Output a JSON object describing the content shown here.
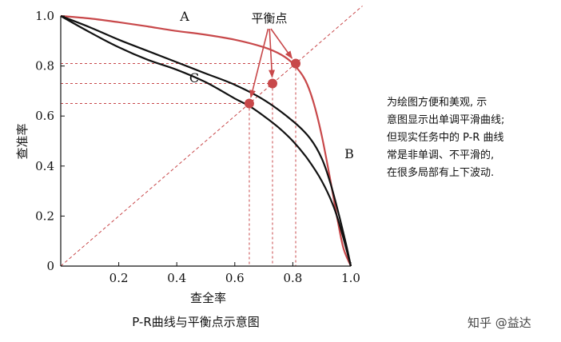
{
  "chart_data": {
    "type": "line",
    "xlabel": "查全率",
    "ylabel": "查准率",
    "xlim": [
      0,
      1
    ],
    "ylim": [
      0,
      1
    ],
    "x_ticks": [
      "0.2",
      "0.4",
      "0.6",
      "0.8",
      "1.0"
    ],
    "y_ticks": [
      "0",
      "0.2",
      "0.4",
      "0.6",
      "0.8",
      "1.0"
    ],
    "grid": false,
    "series": [
      {
        "name": "A",
        "color": "#c8484a",
        "points": [
          [
            0,
            1.0
          ],
          [
            0.1,
            0.99
          ],
          [
            0.2,
            0.975
          ],
          [
            0.3,
            0.958
          ],
          [
            0.4,
            0.94
          ],
          [
            0.5,
            0.925
          ],
          [
            0.6,
            0.905
          ],
          [
            0.7,
            0.875
          ],
          [
            0.76,
            0.845
          ],
          [
            0.8,
            0.81
          ],
          [
            0.84,
            0.75
          ],
          [
            0.87,
            0.66
          ],
          [
            0.9,
            0.52
          ],
          [
            0.93,
            0.34
          ],
          [
            0.955,
            0.18
          ],
          [
            0.975,
            0.07
          ],
          [
            1.0,
            0.0
          ]
        ]
      },
      {
        "name": "B",
        "color": "#111111",
        "points": [
          [
            0,
            1.0
          ],
          [
            0.1,
            0.955
          ],
          [
            0.2,
            0.905
          ],
          [
            0.3,
            0.86
          ],
          [
            0.4,
            0.815
          ],
          [
            0.5,
            0.77
          ],
          [
            0.6,
            0.725
          ],
          [
            0.7,
            0.665
          ],
          [
            0.8,
            0.58
          ],
          [
            0.86,
            0.51
          ],
          [
            0.9,
            0.43
          ],
          [
            0.93,
            0.33
          ],
          [
            0.96,
            0.2
          ],
          [
            0.985,
            0.08
          ],
          [
            1.0,
            0.0
          ]
        ]
      },
      {
        "name": "C",
        "color": "#111111",
        "points": [
          [
            0,
            1.0
          ],
          [
            0.1,
            0.935
          ],
          [
            0.2,
            0.875
          ],
          [
            0.3,
            0.825
          ],
          [
            0.4,
            0.785
          ],
          [
            0.5,
            0.735
          ],
          [
            0.6,
            0.67
          ],
          [
            0.65,
            0.64
          ],
          [
            0.7,
            0.6
          ],
          [
            0.75,
            0.555
          ],
          [
            0.8,
            0.5
          ],
          [
            0.85,
            0.43
          ],
          [
            0.9,
            0.34
          ],
          [
            0.94,
            0.24
          ],
          [
            0.97,
            0.13
          ],
          [
            1.0,
            0.0
          ]
        ]
      }
    ],
    "reference_line": {
      "from": [
        0,
        0
      ],
      "to": [
        1,
        1
      ],
      "color": "#c8484a",
      "style": "dashed"
    },
    "break_even_points": [
      {
        "x": 0.65,
        "y": 0.65
      },
      {
        "x": 0.73,
        "y": 0.73
      },
      {
        "x": 0.81,
        "y": 0.81
      }
    ],
    "annotation": "平衡点",
    "caption": "P-R曲线与平衡点示意图"
  },
  "note_lines": [
    "为绘图方便和美观, 示",
    "意图显示出单调平滑曲线;",
    "但现实任务中的 P-R 曲线",
    "常是非单调、不平滑的,",
    "在很多局部有上下波动."
  ],
  "watermark": "知乎 @益达",
  "colors": {
    "accent": "#c8484a",
    "ink": "#111111"
  }
}
